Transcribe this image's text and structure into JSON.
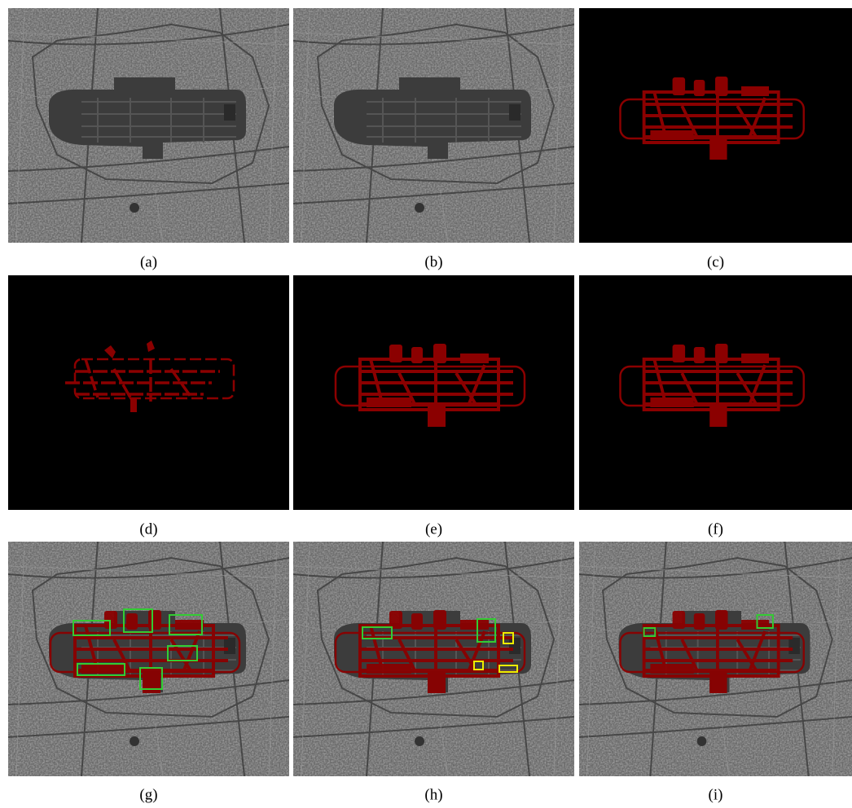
{
  "figure": {
    "panels": [
      {
        "label": "(a)"
      },
      {
        "label": "(b)"
      },
      {
        "label": "(c)"
      },
      {
        "label": "(d)"
      },
      {
        "label": "(e)"
      },
      {
        "label": "(f)"
      },
      {
        "label": "(g)"
      },
      {
        "label": "(h)"
      },
      {
        "label": "(i)"
      }
    ]
  }
}
